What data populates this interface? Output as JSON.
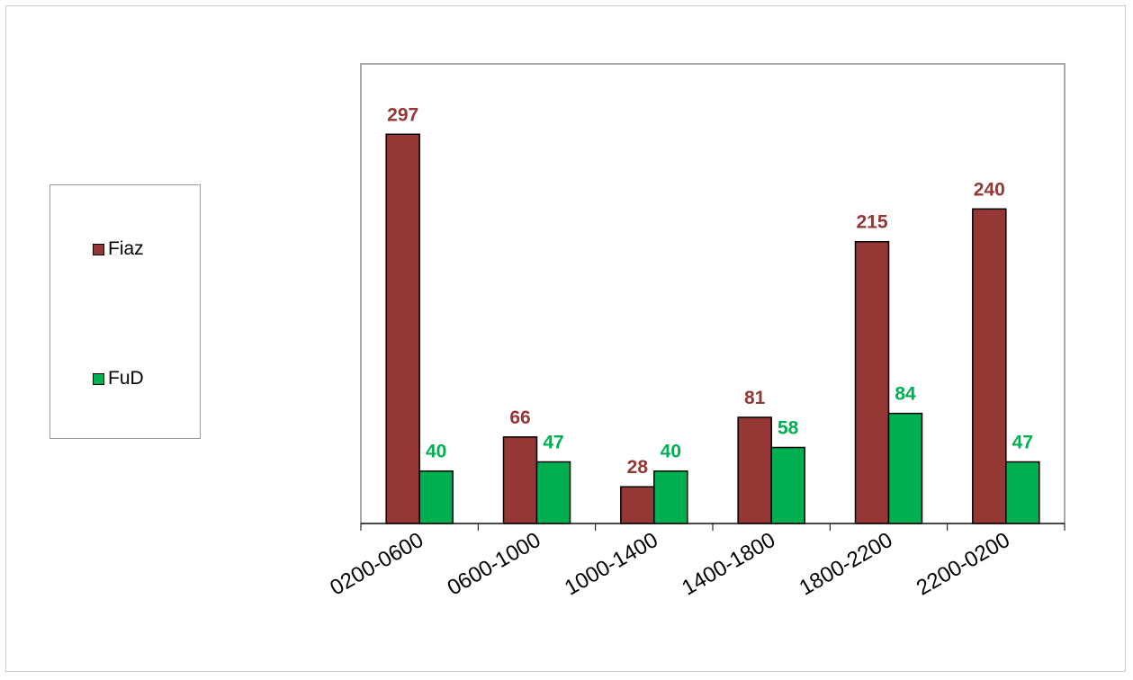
{
  "chart_data": {
    "type": "bar",
    "categories": [
      "0200-0600",
      "0600-1000",
      "1000-1400",
      "1400-1800",
      "1800-2200",
      "2200-0200"
    ],
    "series": [
      {
        "name": "Fiaz",
        "values": [
          297,
          66,
          28,
          81,
          215,
          240
        ],
        "color": "#953735",
        "label_color": "#953735"
      },
      {
        "name": "FuD",
        "values": [
          40,
          47,
          40,
          58,
          84,
          47
        ],
        "color": "#00b050",
        "label_color": "#00b050"
      }
    ],
    "title": "",
    "xlabel": "",
    "ylabel": "",
    "ylim": [
      0,
      330
    ],
    "grid": false,
    "data_labels": true,
    "legend_position": "left"
  }
}
